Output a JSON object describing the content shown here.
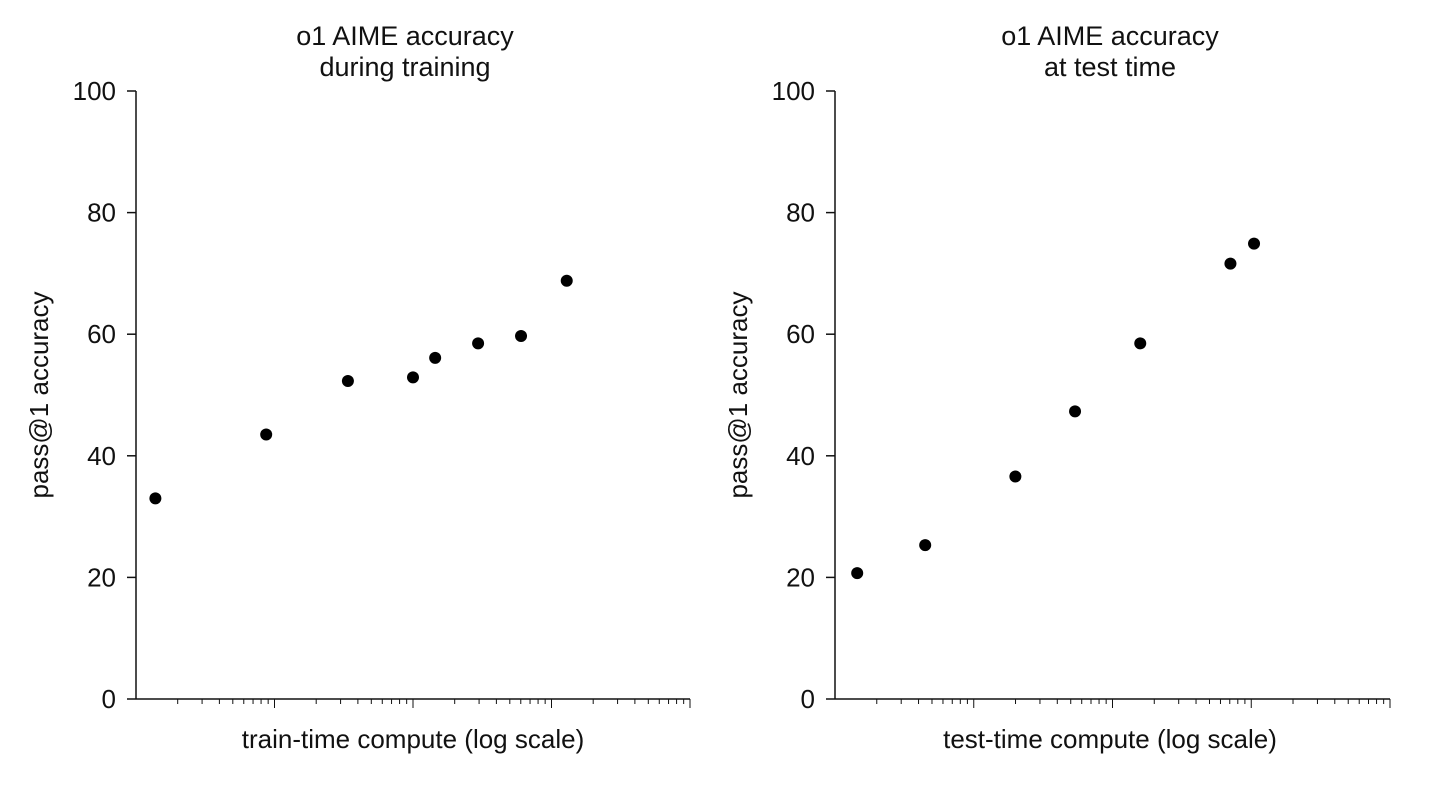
{
  "chart_data": [
    {
      "type": "scatter",
      "title": [
        "o1 AIME accuracy",
        "during training"
      ],
      "xlabel": "train-time compute (log scale)",
      "ylabel": "pass@1 accuracy",
      "ylim": [
        0,
        100
      ],
      "yticks": [
        0,
        20,
        40,
        60,
        80,
        100
      ],
      "xscale": "log",
      "xlim": [
        1,
        5
      ],
      "grid": false,
      "legend": "none",
      "point_color": "#000000",
      "series": [
        {
          "x": [
            1.14,
            1.94,
            2.53,
            3.0,
            3.16,
            3.47,
            3.78,
            4.11
          ],
          "y": [
            33,
            43.5,
            52.3,
            52.9,
            56.1,
            58.5,
            59.7,
            68.8
          ]
        }
      ]
    },
    {
      "type": "scatter",
      "title": [
        "o1 AIME accuracy",
        "at test time"
      ],
      "xlabel": "test-time compute (log scale)",
      "ylabel": "pass@1 accuracy",
      "ylim": [
        0,
        100
      ],
      "yticks": [
        0,
        20,
        40,
        60,
        80,
        100
      ],
      "xscale": "log",
      "xlim": [
        1,
        5
      ],
      "grid": false,
      "legend": "none",
      "point_color": "#000000",
      "series": [
        {
          "x": [
            1.16,
            1.65,
            2.3,
            2.73,
            3.2,
            3.85,
            4.02
          ],
          "y": [
            20.7,
            25.3,
            36.6,
            47.3,
            58.5,
            71.6,
            74.9
          ]
        }
      ]
    }
  ]
}
